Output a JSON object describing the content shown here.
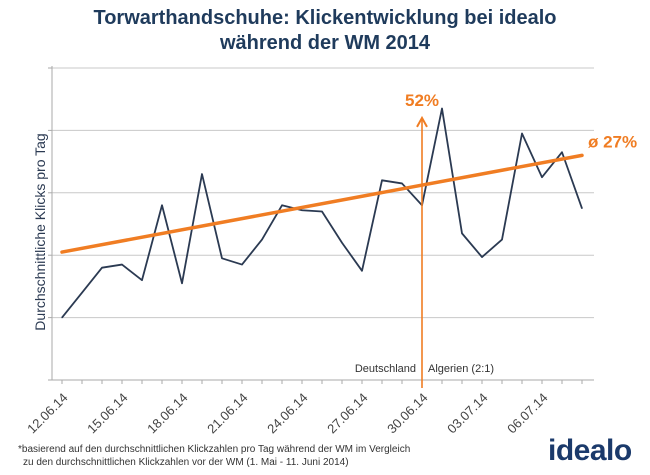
{
  "title_line1": "Torwarthandschuhe: Klickentwicklung bei idealo",
  "title_line2": "während der WM 2014",
  "logo_text": "idealo",
  "footnote_line1": "*basierend auf den durchschnittlichen Klickzahlen pro Tag während der WM im Vergleich",
  "footnote_line2": "zu den durchschnittlichen Klickzahlen vor der WM (1. Mai - 11. Juni 2014)",
  "colors": {
    "title": "#1f3b5c",
    "line": "#2b3a52",
    "trend": "#f07d23",
    "grid": "#c8c8c8",
    "logo": "#1b3a6b"
  },
  "chart_data": {
    "type": "line",
    "ylabel": "Durchschnittliche Klicks pro Tag",
    "xlabel": "",
    "x_tick_labels": [
      "12.06.14",
      "15.06.14",
      "18.06.14",
      "21.06.14",
      "24.06.14",
      "27.06.14",
      "30.06.14",
      "03.07.14",
      "06.07.14"
    ],
    "y_tick_labels_shown": false,
    "grid": "horizontal",
    "ylim": [
      0,
      5
    ],
    "series": [
      {
        "type": "line",
        "x": [
          "12.06.14",
          "13.06.14",
          "14.06.14",
          "15.06.14",
          "16.06.14",
          "17.06.14",
          "18.06.14",
          "19.06.14",
          "20.06.14",
          "21.06.14",
          "22.06.14",
          "23.06.14",
          "24.06.14",
          "25.06.14",
          "26.06.14",
          "27.06.14",
          "28.06.14",
          "29.06.14",
          "30.06.14",
          "01.07.14",
          "02.07.14",
          "03.07.14",
          "04.07.14",
          "05.07.14",
          "06.07.14",
          "07.07.14",
          "08.07.14"
        ],
        "values": [
          1.0,
          1.4,
          1.8,
          1.85,
          1.6,
          2.8,
          1.55,
          3.3,
          1.95,
          1.85,
          2.25,
          2.8,
          2.72,
          2.7,
          2.2,
          1.75,
          3.2,
          3.15,
          2.8,
          4.35,
          2.35,
          1.97,
          2.25,
          3.95,
          3.25,
          3.65,
          2.75
        ]
      },
      {
        "type": "trend",
        "x": [
          "12.06.14",
          "08.07.14"
        ],
        "values": [
          2.05,
          3.6
        ]
      }
    ],
    "annotations": [
      {
        "text": "52%",
        "at": "30.06.14",
        "kind": "arrow-up"
      },
      {
        "text": "ø 27%",
        "at": "08.07.14",
        "kind": "trend-label"
      },
      {
        "text": "Deutschland",
        "at": "30.06.14",
        "kind": "match-left"
      },
      {
        "text": "Algerien (2:1)",
        "at": "30.06.14",
        "kind": "match-right"
      }
    ]
  }
}
